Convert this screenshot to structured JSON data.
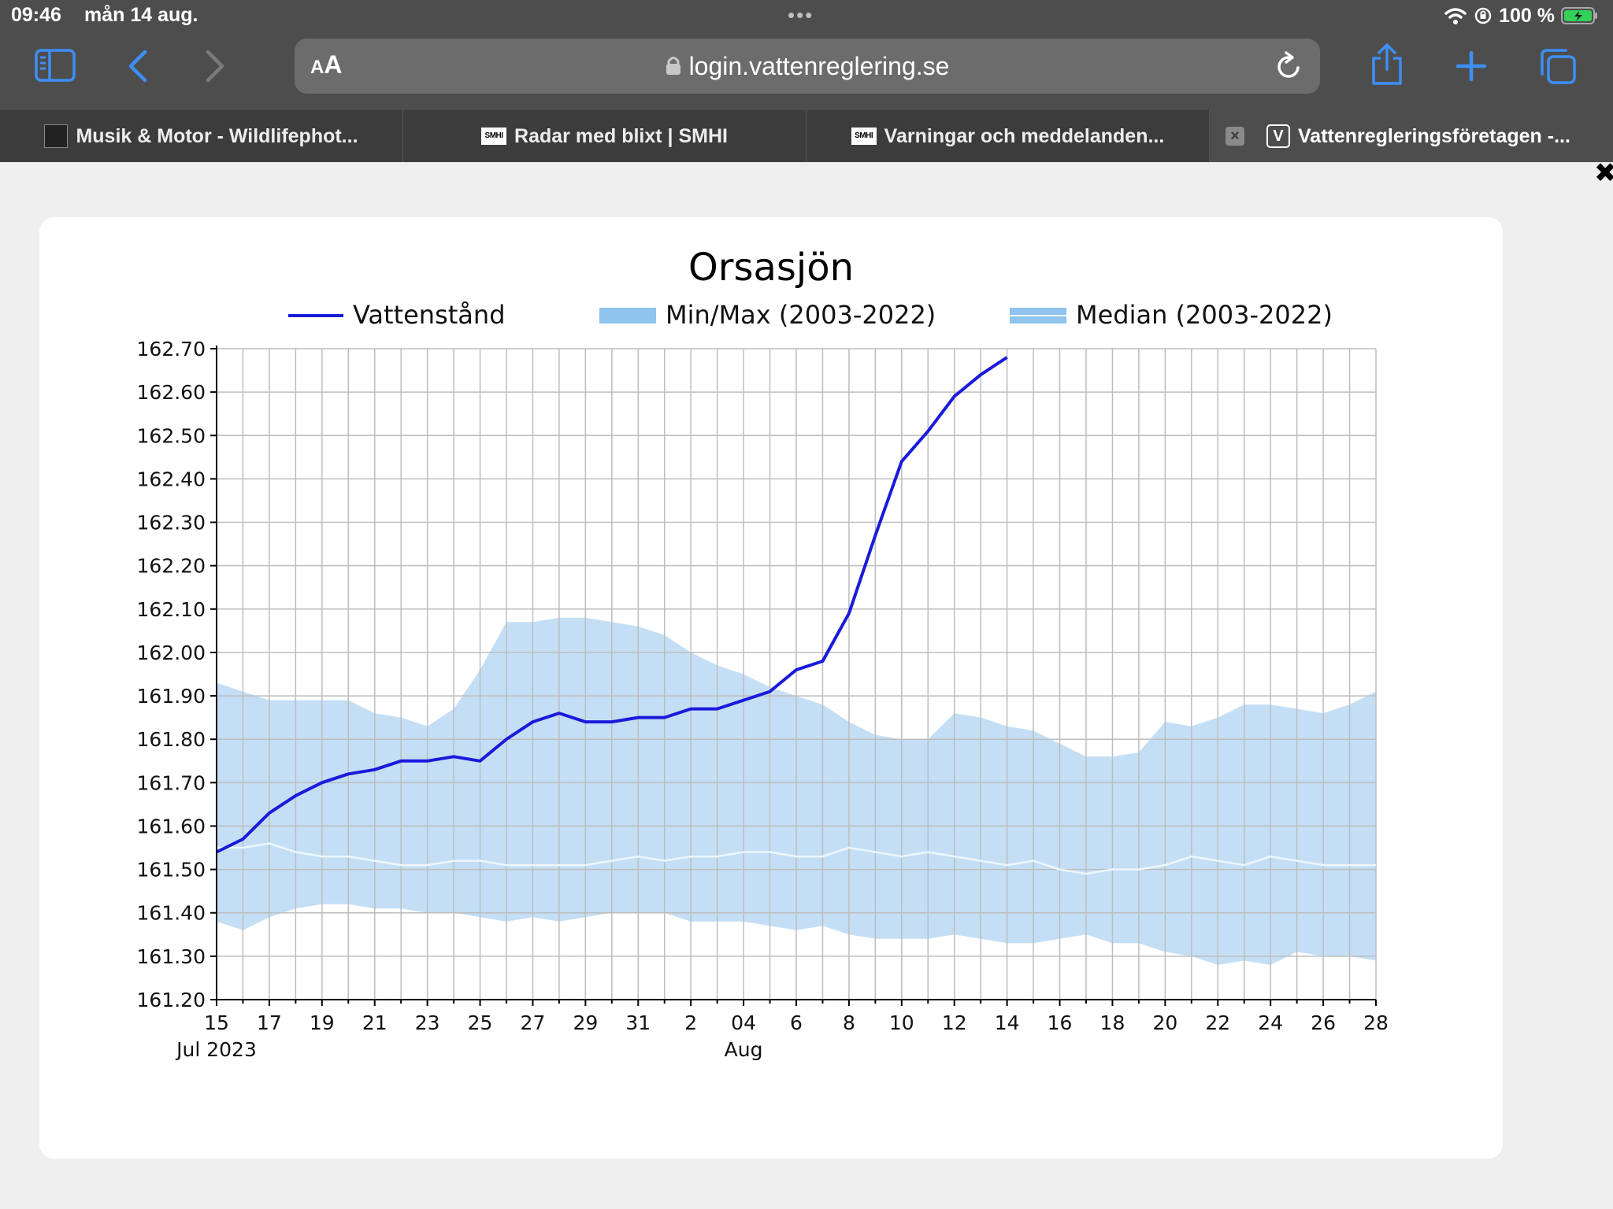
{
  "status": {
    "time": "09:46",
    "date": "mån 14 aug.",
    "battery": "100 %",
    "dots": "•••"
  },
  "browser": {
    "aa_small": "A",
    "aa_large": "A",
    "url": "login.vattenreglering.se",
    "tabs": [
      {
        "title": "Musik & Motor - Wildlifephot..."
      },
      {
        "title": "Radar med blixt | SMHI",
        "favicon": "SMHI"
      },
      {
        "title": "Varningar och meddelanden...",
        "favicon": "SMHI"
      },
      {
        "title": "Vattenregleringsföretagen -...",
        "favicon": "V"
      }
    ],
    "close_symbol": "×",
    "corner_mark": "✖"
  },
  "chart_data": {
    "type": "line",
    "title": "Orsasjön",
    "legend": [
      "Vattenstånd",
      "Min/Max (2003-2022)",
      "Median (2003-2022)"
    ],
    "legend_position": "top",
    "colors": {
      "line": "#1a1adb",
      "band": "#c4dff5",
      "median": "#eef6fd",
      "grid": "#bdbdbd"
    },
    "ylim": [
      161.2,
      162.7
    ],
    "yticks": [
      "161.20",
      "161.30",
      "161.40",
      "161.50",
      "161.60",
      "161.70",
      "161.80",
      "161.90",
      "162.00",
      "162.10",
      "162.20",
      "162.30",
      "162.40",
      "162.50",
      "162.60",
      "162.70"
    ],
    "xlim": [
      0,
      44
    ],
    "xticks": [
      {
        "day": 0,
        "label": "15"
      },
      {
        "day": 2,
        "label": "17"
      },
      {
        "day": 4,
        "label": "19"
      },
      {
        "day": 6,
        "label": "21"
      },
      {
        "day": 8,
        "label": "23"
      },
      {
        "day": 10,
        "label": "25"
      },
      {
        "day": 12,
        "label": "27"
      },
      {
        "day": 14,
        "label": "29"
      },
      {
        "day": 16,
        "label": "31"
      },
      {
        "day": 18,
        "label": "2"
      },
      {
        "day": 20,
        "label": "04"
      },
      {
        "day": 22,
        "label": "6"
      },
      {
        "day": 24,
        "label": "8"
      },
      {
        "day": 26,
        "label": "10"
      },
      {
        "day": 28,
        "label": "12"
      },
      {
        "day": 30,
        "label": "14"
      },
      {
        "day": 32,
        "label": "16"
      },
      {
        "day": 34,
        "label": "18"
      },
      {
        "day": 36,
        "label": "20"
      },
      {
        "day": 38,
        "label": "22"
      },
      {
        "day": 40,
        "label": "24"
      },
      {
        "day": 42,
        "label": "26"
      },
      {
        "day": 44,
        "label": "28"
      }
    ],
    "month_labels": [
      {
        "day": 0,
        "label": "Jul 2023"
      },
      {
        "day": 20,
        "label": "Aug"
      }
    ],
    "series": {
      "vattenstand": [
        161.54,
        161.57,
        161.63,
        161.67,
        161.7,
        161.72,
        161.73,
        161.75,
        161.75,
        161.76,
        161.75,
        161.8,
        161.84,
        161.86,
        161.84,
        161.84,
        161.85,
        161.85,
        161.87,
        161.87,
        161.89,
        161.91,
        161.96,
        161.98,
        162.09,
        162.27,
        162.44,
        162.51,
        162.59,
        162.64,
        162.68
      ],
      "max": [
        161.93,
        161.91,
        161.89,
        161.89,
        161.89,
        161.89,
        161.86,
        161.85,
        161.83,
        161.87,
        161.96,
        162.07,
        162.07,
        162.08,
        162.08,
        162.07,
        162.06,
        162.04,
        162.0,
        161.97,
        161.95,
        161.92,
        161.9,
        161.88,
        161.84,
        161.81,
        161.8,
        161.8,
        161.86,
        161.85,
        161.83,
        161.82,
        161.79,
        161.76,
        161.76,
        161.77,
        161.84,
        161.83,
        161.85,
        161.88,
        161.88,
        161.87,
        161.86,
        161.88,
        161.91
      ],
      "min": [
        161.38,
        161.36,
        161.39,
        161.41,
        161.42,
        161.42,
        161.41,
        161.41,
        161.4,
        161.4,
        161.39,
        161.38,
        161.39,
        161.38,
        161.39,
        161.4,
        161.4,
        161.4,
        161.38,
        161.38,
        161.38,
        161.37,
        161.36,
        161.37,
        161.35,
        161.34,
        161.34,
        161.34,
        161.35,
        161.34,
        161.33,
        161.33,
        161.34,
        161.35,
        161.33,
        161.33,
        161.31,
        161.3,
        161.28,
        161.29,
        161.28,
        161.31,
        161.3,
        161.3,
        161.29
      ],
      "median": [
        161.55,
        161.55,
        161.56,
        161.54,
        161.53,
        161.53,
        161.52,
        161.51,
        161.51,
        161.52,
        161.52,
        161.51,
        161.51,
        161.51,
        161.51,
        161.52,
        161.53,
        161.52,
        161.53,
        161.53,
        161.54,
        161.54,
        161.53,
        161.53,
        161.55,
        161.54,
        161.53,
        161.54,
        161.53,
        161.52,
        161.51,
        161.52,
        161.5,
        161.49,
        161.5,
        161.5,
        161.51,
        161.53,
        161.52,
        161.51,
        161.53,
        161.52,
        161.51,
        161.51,
        161.51
      ]
    }
  }
}
